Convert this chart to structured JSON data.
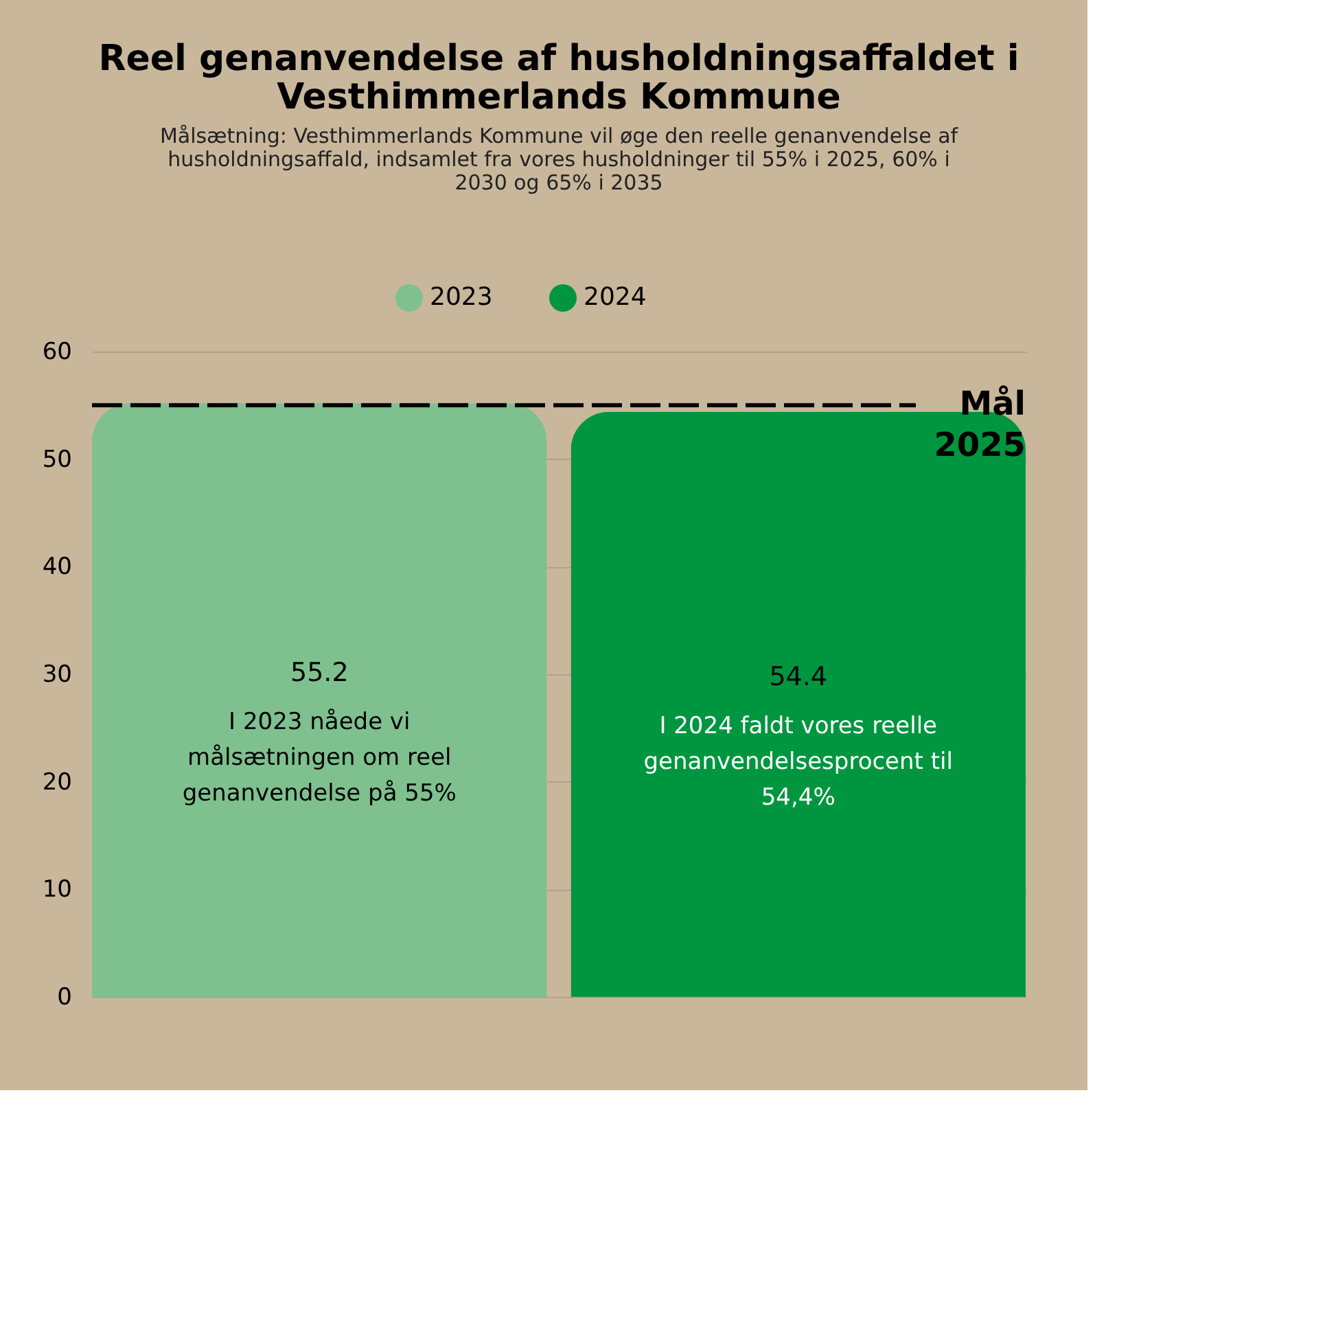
{
  "chart_data": {
    "type": "bar",
    "title": "Reel genanvendelse af husholdningsaffaldet i Vesthimmerlands Kommune",
    "subtitle": "Målsætning: Vesthimmerlands Kommune vil øge den reelle genanvendelse af husholdningsaffald, indsamlet fra vores husholdninger til 55% i 2025, 60% i 2030 og 65% i 2035",
    "categories": [
      null,
      null
    ],
    "series": [
      {
        "name": "2023",
        "color": "#7fc08f",
        "values": [
          55.2,
          null
        ]
      },
      {
        "name": "2024",
        "color": "#009640",
        "values": [
          null,
          54.4
        ]
      }
    ],
    "annotations": [
      "I 2023 nåede vi målsætningen om reel genanvendelse på 55%",
      "I 2024 faldt vores reelle genanvendelsesprocent til 54,4%"
    ],
    "ylim": [
      0,
      60
    ],
    "yticks": [
      0,
      10,
      20,
      30,
      40,
      50,
      60
    ],
    "ref_lines": [
      {
        "axis": "y",
        "value": 55,
        "label": "Mål 2025",
        "color": "#000000",
        "line_style": "dashed"
      }
    ],
    "data_labels": true,
    "grid": "y",
    "legend": "top"
  }
}
